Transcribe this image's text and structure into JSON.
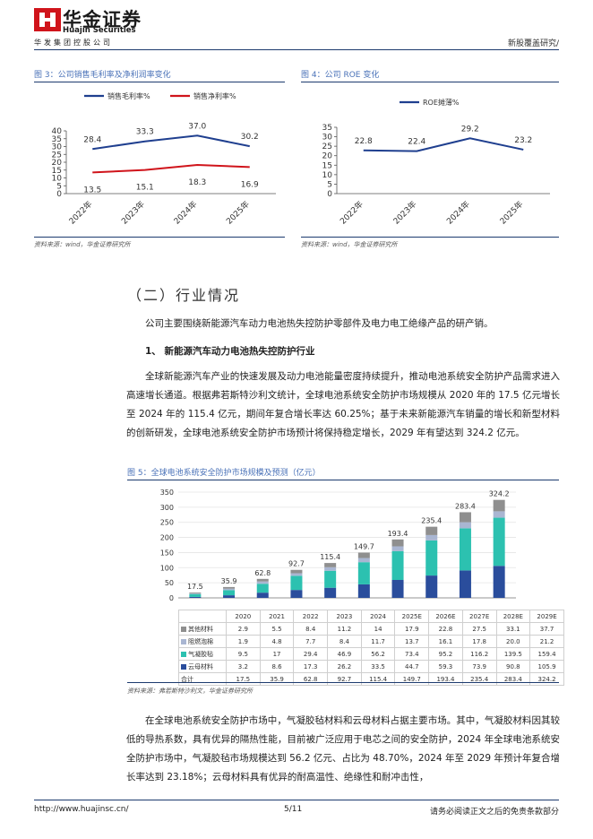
{
  "header": {
    "brand_cn": "华金证券",
    "brand_en": "Huajin Securities",
    "company": "华发集团控股公司",
    "report_type": "新股覆盖研究/"
  },
  "fig3": {
    "title": "图 3：公司销售毛利率及净利润率变化",
    "source": "资料来源：wind，华金证券研究所",
    "chart_data": {
      "type": "line",
      "categories": [
        "2022年",
        "2023年",
        "2024年",
        "2025年"
      ],
      "series": [
        {
          "name": "销售毛利率%",
          "values": [
            28.4,
            33.3,
            37.0,
            30.2
          ],
          "labels": [
            "28.4",
            "33.3",
            "37.0",
            "30.2"
          ],
          "color": "#1f3f8f"
        },
        {
          "name": "销售净利率%",
          "values": [
            13.5,
            15.1,
            18.3,
            16.9
          ],
          "labels": [
            "13.5",
            "15.1",
            "18.3",
            "16.9"
          ],
          "color": "#d0141b"
        }
      ],
      "yticks": [
        "0",
        "5",
        "10",
        "15",
        "20",
        "25",
        "30",
        "35",
        "40"
      ],
      "ylim": [
        0,
        40
      ],
      "legend": "top"
    }
  },
  "fig4": {
    "title": "图 4：公司 ROE 变化",
    "source": "资料来源：wind，华金证券研究所",
    "chart_data": {
      "type": "line",
      "categories": [
        "2022年",
        "2023年",
        "2024年",
        "2025年"
      ],
      "series": [
        {
          "name": "ROE摊薄%",
          "values": [
            22.8,
            22.4,
            29.2,
            23.2
          ],
          "labels": [
            "22.8",
            "22.4",
            "29.2",
            "23.2"
          ],
          "color": "#1f3f8f"
        }
      ],
      "yticks": [
        "0",
        "5",
        "10",
        "15",
        "20",
        "25",
        "30",
        "35"
      ],
      "ylim": [
        0,
        35
      ],
      "legend": "top"
    }
  },
  "section": {
    "title": "（二）行业情况",
    "intro": "公司主要围绕新能源汽车动力电池热失控防护零部件及电力电工绝缘产品的研产销。",
    "sub1": "1、 新能源汽车动力电池热失控防护行业",
    "para1": "全球新能源汽车产业的快速发展及动力电池能量密度持续提升，推动电池系统安全防护产品需求进入高速增长通道。根据弗若斯特沙利文统计，全球电池系统安全防护市场规模从 2020 年的 17.5 亿元增长至 2024 年的 115.4 亿元，期间年复合增长率达 60.25%；基于未来新能源汽车销量的增长和新型材料的创新研发，全球电池系统安全防护市场预计将保持稳定增长，2029 年有望达到 324.2 亿元。",
    "para2": "在全球电池系统安全防护市场中，气凝胶毡材料和云母材料占据主要市场。其中，气凝胶材料因其较低的导热系数，具有优异的隔热性能，目前被广泛应用于电芯之间的安全防护，2024 年全球电池系统安全防护市场中，气凝胶毡市场规模达到 56.2 亿元、占比为 48.70%，2024 年至 2029 年预计年复合增长率达到 23.18%；云母材料具有优异的耐高温性、绝缘性和耐冲击性，"
  },
  "fig5": {
    "title": "图 5：全球电池系统安全防护市场规模及预测（亿元）",
    "source": "资料来源：弗若斯特沙利文，华金证券研究所",
    "chart_data": {
      "type": "bar",
      "stacked": true,
      "categories": [
        "2020",
        "2021",
        "2022",
        "2023",
        "2024",
        "2025E",
        "2026E",
        "2027E",
        "2028E",
        "2029E"
      ],
      "series": [
        {
          "name": "云母材料",
          "values": [
            3.2,
            8.6,
            17.3,
            26.2,
            33.5,
            44.7,
            59.3,
            73.9,
            90.8,
            105.9
          ],
          "labels": [
            "3.2",
            "8.6",
            "17.3",
            "26.2",
            "33.5",
            "44.7",
            "59.3",
            "73.9",
            "90.8",
            "105.9"
          ],
          "color": "#2a4d9c"
        },
        {
          "name": "气凝胶毡",
          "values": [
            9.5,
            17,
            29.4,
            46.9,
            56.2,
            73.4,
            95.2,
            116.2,
            139.5,
            159.4
          ],
          "labels": [
            "9.5",
            "17",
            "29.4",
            "46.9",
            "56.2",
            "73.4",
            "95.2",
            "116.2",
            "139.5",
            "159.4"
          ],
          "color": "#2cc1b0"
        },
        {
          "name": "阻燃泡棉",
          "values": [
            1.9,
            4.8,
            7.7,
            8.4,
            11.7,
            13.7,
            16.1,
            17.8,
            20.0,
            21.2
          ],
          "labels": [
            "1.9",
            "4.8",
            "7.7",
            "8.4",
            "11.7",
            "13.7",
            "16.1",
            "17.8",
            "20.0",
            "21.2"
          ],
          "color": "#a9b6d2"
        },
        {
          "name": "其他材料",
          "values": [
            2.9,
            5.5,
            8.4,
            11.2,
            14,
            17.9,
            22.8,
            27.5,
            33.1,
            37.7
          ],
          "labels": [
            "2.9",
            "5.5",
            "8.4",
            "11.2",
            "14",
            "17.9",
            "22.8",
            "27.5",
            "33.1",
            "37.7"
          ],
          "color": "#8f8f8f"
        }
      ],
      "totals": [
        17.5,
        35.9,
        62.8,
        92.7,
        115.4,
        149.7,
        193.4,
        235.4,
        283.4,
        324.2
      ],
      "total_labels": [
        "17.5",
        "35.9",
        "62.8",
        "92.7",
        "115.4",
        "149.7",
        "193.4",
        "235.4",
        "283.4",
        "324.2"
      ],
      "total_row_label": "合计",
      "yticks": [
        "0",
        "50",
        "100",
        "150",
        "200",
        "250",
        "300",
        "350"
      ],
      "ylim": [
        0,
        350
      ]
    }
  },
  "footer": {
    "url": "http://www.huajinsc.cn/",
    "page": "5/11",
    "disclaimer": "请务必阅读正文之后的免责条款部分"
  }
}
